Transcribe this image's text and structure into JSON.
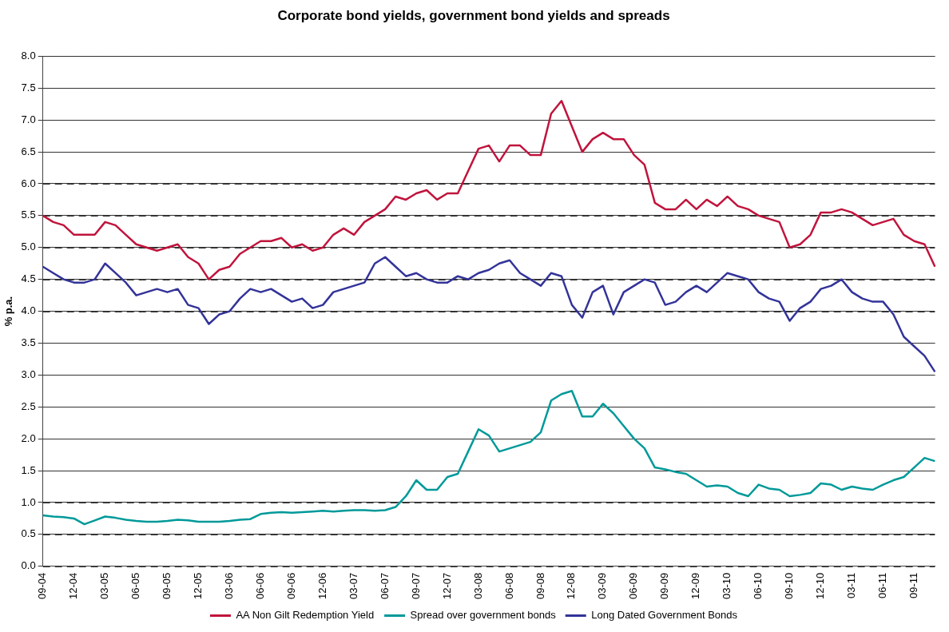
{
  "chart_data": {
    "type": "line",
    "title": "Corporate bond yields, government bond yields and spreads",
    "ylabel": "% p.a.",
    "categories": [
      "09-04",
      null,
      null,
      "12-04",
      null,
      null,
      "03-05",
      null,
      null,
      "06-05",
      null,
      null,
      "09-05",
      null,
      null,
      "12-05",
      null,
      null,
      "03-06",
      null,
      null,
      "06-06",
      null,
      null,
      "09-06",
      null,
      null,
      "12-06",
      null,
      null,
      "03-07",
      null,
      null,
      "06-07",
      null,
      null,
      "09-07",
      null,
      null,
      "12-07",
      null,
      null,
      "03-08",
      null,
      null,
      "06-08",
      null,
      null,
      "09-08",
      null,
      null,
      "12-08",
      null,
      null,
      "03-09",
      null,
      null,
      "06-09",
      null,
      null,
      "09-09",
      null,
      null,
      "12-09",
      null,
      null,
      "03-10",
      null,
      null,
      "06-10",
      null,
      null,
      "09-10",
      null,
      null,
      "12-10",
      null,
      null,
      "03-11",
      null,
      null,
      "06-11",
      null,
      null,
      "09-11",
      null,
      null
    ],
    "series": [
      {
        "name": "AA Non Gilt Redemption Yield",
        "color": "#c0143c",
        "values": [
          5.5,
          5.4,
          5.35,
          5.2,
          5.2,
          5.2,
          5.4,
          5.35,
          5.2,
          5.05,
          5.0,
          4.95,
          5.0,
          5.05,
          4.85,
          4.75,
          4.5,
          4.65,
          4.7,
          4.9,
          5.0,
          5.1,
          5.1,
          5.15,
          5.0,
          5.05,
          4.95,
          5.0,
          5.2,
          5.3,
          5.2,
          5.4,
          5.5,
          5.6,
          5.8,
          5.75,
          5.85,
          5.9,
          5.75,
          5.85,
          5.85,
          6.2,
          6.55,
          6.6,
          6.35,
          6.6,
          6.6,
          6.45,
          6.45,
          7.1,
          7.3,
          6.9,
          6.5,
          6.7,
          6.8,
          6.7,
          6.7,
          6.45,
          6.3,
          5.7,
          5.6,
          5.6,
          5.75,
          5.6,
          5.75,
          5.65,
          5.8,
          5.65,
          5.6,
          5.5,
          5.45,
          5.4,
          5.0,
          5.05,
          5.2,
          5.55,
          5.55,
          5.6,
          5.55,
          5.45,
          5.35,
          5.4,
          5.45,
          5.2,
          5.1,
          5.05,
          4.7
        ]
      },
      {
        "name": "Spread over government bonds",
        "color": "#009999",
        "values": [
          0.8,
          0.78,
          0.77,
          0.75,
          0.66,
          0.72,
          0.78,
          0.76,
          0.73,
          0.71,
          0.7,
          0.7,
          0.71,
          0.73,
          0.72,
          0.7,
          0.7,
          0.7,
          0.71,
          0.73,
          0.74,
          0.82,
          0.84,
          0.85,
          0.84,
          0.85,
          0.86,
          0.87,
          0.86,
          0.87,
          0.88,
          0.88,
          0.87,
          0.88,
          0.93,
          1.1,
          1.35,
          1.2,
          1.2,
          1.4,
          1.45,
          1.8,
          2.15,
          2.05,
          1.8,
          1.85,
          1.9,
          1.95,
          2.1,
          2.6,
          2.7,
          2.75,
          2.35,
          2.35,
          2.55,
          2.4,
          2.2,
          2.0,
          1.85,
          1.55,
          1.52,
          1.48,
          1.45,
          1.35,
          1.25,
          1.27,
          1.25,
          1.15,
          1.1,
          1.28,
          1.22,
          1.2,
          1.1,
          1.12,
          1.15,
          1.3,
          1.28,
          1.2,
          1.25,
          1.22,
          1.2,
          1.28,
          1.35,
          1.4,
          1.55,
          1.7,
          1.65
        ]
      },
      {
        "name": "Long Dated Government Bonds",
        "color": "#333399",
        "values": [
          4.7,
          4.6,
          4.5,
          4.45,
          4.45,
          4.5,
          4.75,
          4.6,
          4.45,
          4.25,
          4.3,
          4.35,
          4.3,
          4.35,
          4.1,
          4.05,
          3.8,
          3.95,
          4.0,
          4.2,
          4.35,
          4.3,
          4.35,
          4.25,
          4.15,
          4.2,
          4.05,
          4.1,
          4.3,
          4.35,
          4.4,
          4.45,
          4.75,
          4.85,
          4.7,
          4.55,
          4.6,
          4.5,
          4.45,
          4.45,
          4.55,
          4.5,
          4.6,
          4.65,
          4.75,
          4.8,
          4.6,
          4.5,
          4.4,
          4.6,
          4.55,
          4.1,
          3.9,
          4.3,
          4.4,
          3.95,
          4.3,
          4.4,
          4.5,
          4.45,
          4.1,
          4.15,
          4.3,
          4.4,
          4.3,
          4.45,
          4.6,
          4.55,
          4.5,
          4.3,
          4.2,
          4.15,
          3.85,
          4.05,
          4.15,
          4.35,
          4.4,
          4.5,
          4.3,
          4.2,
          4.15,
          4.15,
          3.95,
          3.6,
          3.45,
          3.3,
          3.05
        ]
      }
    ],
    "ylim": [
      0,
      8
    ],
    "yticks": [
      {
        "value": 0,
        "label": "0.0"
      },
      {
        "value": 0.5,
        "label": "0.5"
      },
      {
        "value": 1,
        "label": "1.0"
      },
      {
        "value": 1.5,
        "label": "1.5"
      },
      {
        "value": 2,
        "label": "2.0"
      },
      {
        "value": 2.5,
        "label": "2.5"
      },
      {
        "value": 3,
        "label": "3.0"
      },
      {
        "value": 3.5,
        "label": "3.5"
      },
      {
        "value": 4,
        "label": "4.0"
      },
      {
        "value": 4.5,
        "label": "4.5"
      },
      {
        "value": 5,
        "label": "5.0"
      },
      {
        "value": 5.5,
        "label": "5.5"
      },
      {
        "value": 6,
        "label": "6.0"
      },
      {
        "value": 6.5,
        "label": "6.5"
      },
      {
        "value": 7,
        "label": "7.0"
      },
      {
        "value": 7.5,
        "label": "7.5"
      },
      {
        "value": 8,
        "label": "8.0"
      }
    ],
    "grid": "y",
    "legend": "bottom",
    "marker": "none",
    "line_style": "solid"
  }
}
